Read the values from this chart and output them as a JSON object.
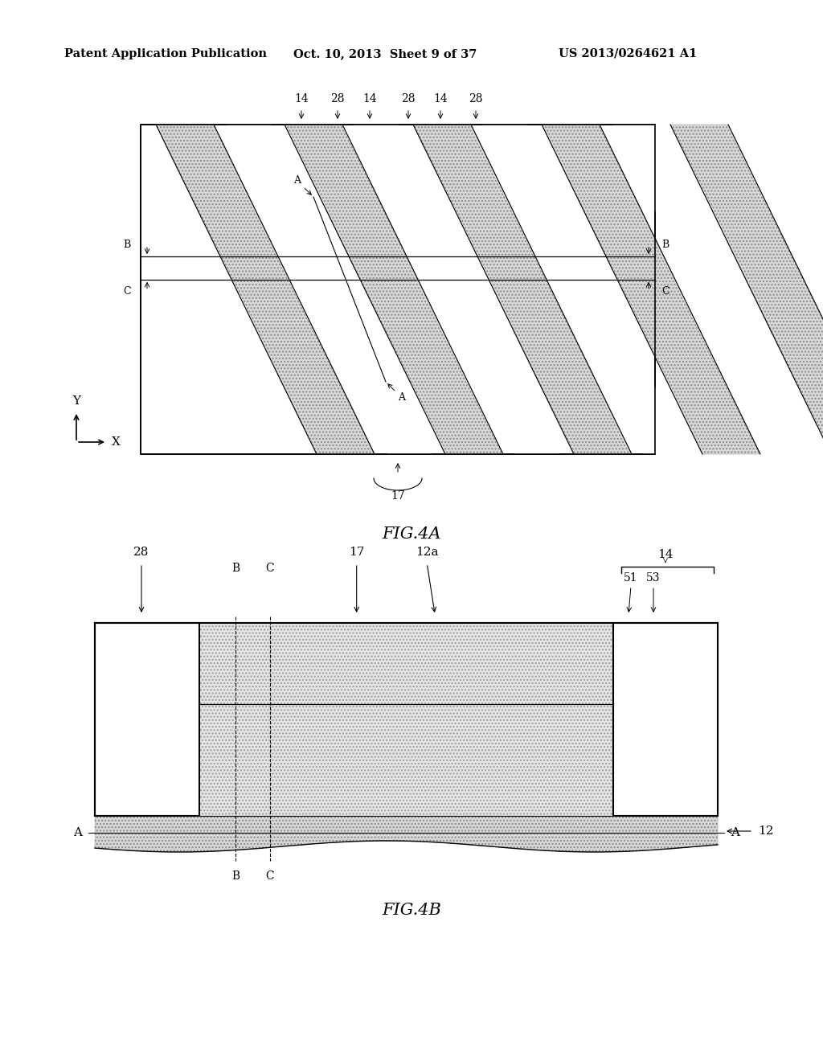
{
  "header_left": "Patent Application Publication",
  "header_mid": "Oct. 10, 2013  Sheet 9 of 37",
  "header_right": "US 2013/0264621 A1",
  "fig4a_label": "FIG.4A",
  "fig4b_label": "FIG.4B",
  "bg_color": "#ffffff",
  "line_color": "#000000"
}
